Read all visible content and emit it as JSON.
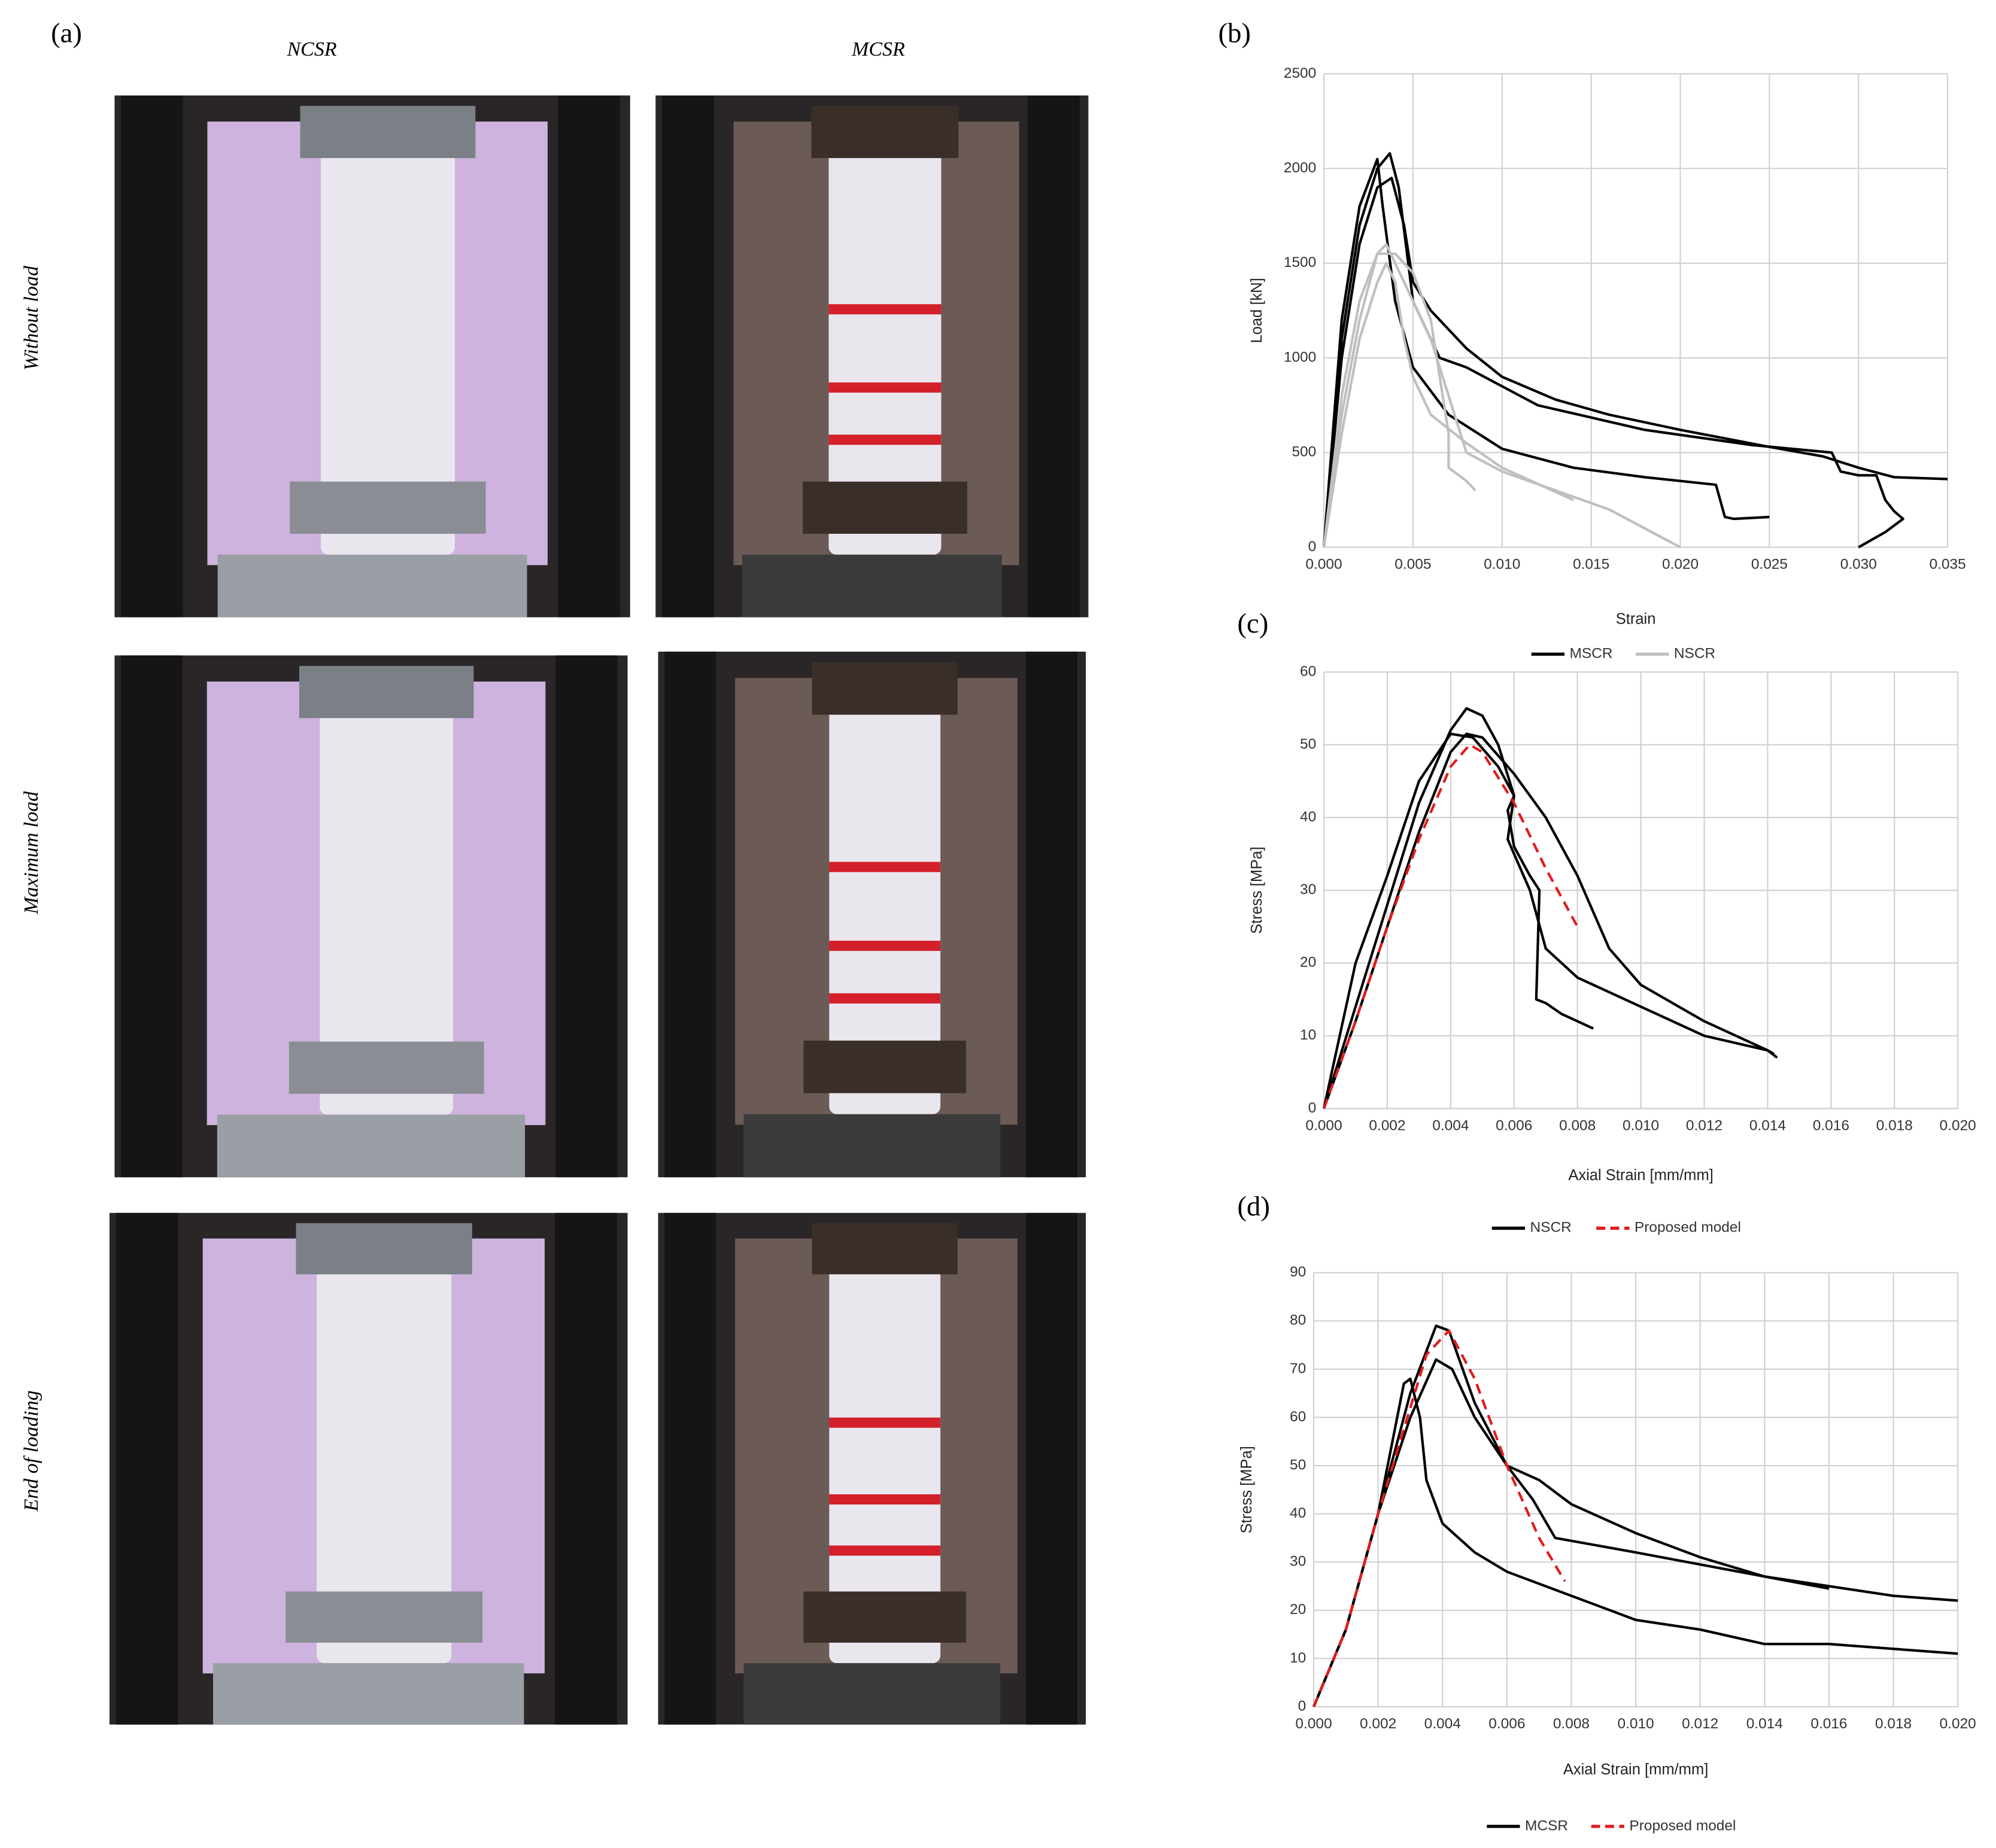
{
  "panel_labels": [
    "(a)",
    "(b)",
    "(c)",
    "(d)"
  ],
  "photos": {
    "columns": [
      "NCSR",
      "MCSR"
    ],
    "rows": [
      "Without load",
      "Maximum load",
      "End of loading"
    ]
  },
  "chart_data": [
    {
      "type": "line",
      "x_label": "Strain",
      "y_label": "Load [kN]",
      "grid": true,
      "legend": "bottom",
      "xlim": [
        0,
        0.035
      ],
      "ylim": [
        0,
        2500
      ],
      "xticks": [
        {
          "value": 0,
          "label": "0.000"
        },
        {
          "value": 0.005,
          "label": "0.005"
        },
        {
          "value": 0.01,
          "label": "0.010"
        },
        {
          "value": 0.015,
          "label": "0.015"
        },
        {
          "value": 0.02,
          "label": "0.020"
        },
        {
          "value": 0.025,
          "label": "0.025"
        },
        {
          "value": 0.03,
          "label": "0.030"
        },
        {
          "value": 0.035,
          "label": "0.035"
        }
      ],
      "yticks": [
        0,
        500,
        1000,
        1500,
        2000,
        2500
      ],
      "series": [
        {
          "name": "MSCR",
          "color": "#000000",
          "style": "solid",
          "curves": [
            {
              "x": [
                0,
                0.001,
                0.002,
                0.003,
                0.0038,
                0.0045,
                0.005,
                0.006,
                0.008,
                0.01,
                0.013,
                0.016,
                0.02,
                0.025,
                0.028,
                0.03,
                0.032,
                0.035
              ],
              "values": [
                0,
                1000,
                1600,
                1900,
                1950,
                1700,
                1400,
                1250,
                1050,
                900,
                780,
                700,
                620,
                530,
                480,
                420,
                370,
                360
              ]
            },
            {
              "x": [
                0,
                0.001,
                0.002,
                0.003,
                0.0037,
                0.0042,
                0.005,
                0.0065,
                0.008,
                0.012,
                0.018,
                0.024,
                0.0285,
                0.029,
                0.03,
                0.031,
                0.0315,
                0.032,
                0.0325,
                0.0315,
                0.03
              ],
              "values": [
                0,
                1100,
                1700,
                2000,
                2080,
                1900,
                1300,
                1000,
                950,
                750,
                620,
                540,
                500,
                400,
                380,
                380,
                250,
                190,
                150,
                80,
                0
              ]
            },
            {
              "x": [
                0,
                0.001,
                0.002,
                0.003,
                0.0033,
                0.004,
                0.005,
                0.007,
                0.01,
                0.014,
                0.018,
                0.022,
                0.0225,
                0.023,
                0.025
              ],
              "values": [
                0,
                1200,
                1800,
                2050,
                1800,
                1300,
                950,
                700,
                520,
                420,
                370,
                330,
                160,
                150,
                160
              ]
            }
          ]
        },
        {
          "name": "NSCR",
          "color": "#bfbfbf",
          "style": "solid",
          "curves": [
            {
              "x": [
                0,
                0.001,
                0.002,
                0.003,
                0.0035,
                0.004,
                0.005,
                0.006,
                0.007,
                0.008,
                0.01,
                0.013,
                0.016,
                0.02
              ],
              "values": [
                0,
                700,
                1200,
                1550,
                1600,
                1500,
                1300,
                1100,
                800,
                500,
                400,
                300,
                200,
                0
              ]
            },
            {
              "x": [
                0,
                0.001,
                0.002,
                0.003,
                0.0035,
                0.004,
                0.0045,
                0.005,
                0.006,
                0.008,
                0.01,
                0.014
              ],
              "values": [
                0,
                600,
                1100,
                1400,
                1500,
                1400,
                1100,
                900,
                700,
                550,
                420,
                250
              ]
            },
            {
              "x": [
                0,
                0.001,
                0.002,
                0.003,
                0.004,
                0.005,
                0.006,
                0.0065,
                0.007,
                0.007,
                0.008,
                0.0085
              ],
              "values": [
                0,
                800,
                1300,
                1550,
                1550,
                1450,
                1200,
                900,
                600,
                420,
                350,
                300
              ]
            }
          ]
        }
      ]
    },
    {
      "type": "line",
      "x_label": "Axial Strain [mm/mm]",
      "y_label": "Stress [MPa]",
      "grid": true,
      "legend": "bottom",
      "xlim": [
        0,
        0.02
      ],
      "ylim": [
        0,
        60
      ],
      "xticks": [
        {
          "value": 0,
          "label": "0.000"
        },
        {
          "value": 0.002,
          "label": "0.002"
        },
        {
          "value": 0.004,
          "label": "0.004"
        },
        {
          "value": 0.006,
          "label": "0.006"
        },
        {
          "value": 0.008,
          "label": "0.008"
        },
        {
          "value": 0.01,
          "label": "0.010"
        },
        {
          "value": 0.012,
          "label": "0.012"
        },
        {
          "value": 0.014,
          "label": "0.014"
        },
        {
          "value": 0.016,
          "label": "0.016"
        },
        {
          "value": 0.018,
          "label": "0.018"
        },
        {
          "value": 0.02,
          "label": "0.020"
        }
      ],
      "yticks": [
        0,
        10,
        20,
        30,
        40,
        50,
        60
      ],
      "series": [
        {
          "name": "NSCR",
          "color": "#000000",
          "style": "solid",
          "curves": [
            {
              "x": [
                0,
                0.001,
                0.002,
                0.003,
                0.004,
                0.0045,
                0.005,
                0.006,
                0.007,
                0.008,
                0.009,
                0.01,
                0.012,
                0.014,
                0.0143
              ],
              "values": [
                0,
                12,
                25,
                38,
                49,
                51.5,
                51,
                46,
                40,
                32,
                22,
                17,
                12,
                8,
                7
              ]
            },
            {
              "x": [
                0,
                0.001,
                0.002,
                0.003,
                0.004,
                0.0045,
                0.005,
                0.0055,
                0.006,
                0.0058,
                0.0065,
                0.007,
                0.008,
                0.01,
                0.012,
                0.014,
                0.0142
              ],
              "values": [
                0,
                14,
                28,
                42,
                52,
                55,
                54,
                50,
                43,
                37,
                30,
                22,
                18,
                14,
                10,
                8,
                7.5
              ]
            },
            {
              "x": [
                0,
                0.001,
                0.002,
                0.003,
                0.004,
                0.0047,
                0.0055,
                0.006,
                0.0058,
                0.006,
                0.0065,
                0.0068,
                0.0067,
                0.007,
                0.0075,
                0.0085
              ],
              "values": [
                0,
                20,
                32,
                45,
                51.5,
                51,
                47,
                43,
                41,
                36,
                32,
                30,
                15,
                14.5,
                13,
                11
              ]
            }
          ]
        },
        {
          "name": "Proposed model",
          "color": "#e31a1c",
          "style": "dashed",
          "curves": [
            {
              "x": [
                0,
                0.001,
                0.002,
                0.003,
                0.004,
                0.0046,
                0.005,
                0.006,
                0.007,
                0.008
              ],
              "values": [
                0,
                12,
                25,
                37,
                47,
                50,
                49,
                42,
                33,
                25
              ]
            }
          ]
        }
      ]
    },
    {
      "type": "line",
      "x_label": "Axial Strain [mm/mm]",
      "y_label": "Stress [MPa]",
      "grid": true,
      "legend": "bottom",
      "xlim": [
        0,
        0.02
      ],
      "ylim": [
        0,
        90
      ],
      "xticks": [
        {
          "value": 0,
          "label": "0.000"
        },
        {
          "value": 0.002,
          "label": "0.002"
        },
        {
          "value": 0.004,
          "label": "0.004"
        },
        {
          "value": 0.006,
          "label": "0.006"
        },
        {
          "value": 0.008,
          "label": "0.008"
        },
        {
          "value": 0.01,
          "label": "0.010"
        },
        {
          "value": 0.012,
          "label": "0.012"
        },
        {
          "value": 0.014,
          "label": "0.014"
        },
        {
          "value": 0.016,
          "label": "0.016"
        },
        {
          "value": 0.018,
          "label": "0.018"
        },
        {
          "value": 0.02,
          "label": "0.020"
        }
      ],
      "yticks": [
        0,
        10,
        20,
        30,
        40,
        50,
        60,
        70,
        80,
        90
      ],
      "series": [
        {
          "name": "MCSR",
          "color": "#000000",
          "style": "solid",
          "curves": [
            {
              "x": [
                0,
                0.001,
                0.002,
                0.003,
                0.0038,
                0.0042,
                0.005,
                0.006,
                0.007,
                0.008,
                0.01,
                0.012,
                0.014,
                0.016,
                0.018,
                0.02
              ],
              "values": [
                0,
                16,
                40,
                65,
                79,
                78,
                63,
                50,
                47,
                42,
                36,
                31,
                27,
                25,
                23,
                22
              ]
            },
            {
              "x": [
                0,
                0.001,
                0.002,
                0.003,
                0.0038,
                0.0043,
                0.005,
                0.006,
                0.0068,
                0.0075,
                0.01,
                0.014,
                0.016
              ],
              "values": [
                0,
                16,
                40,
                60,
                72,
                70,
                60,
                50,
                43,
                35,
                32,
                27,
                24.5
              ]
            },
            {
              "x": [
                0,
                0.001,
                0.002,
                0.0028,
                0.003,
                0.0033,
                0.0035,
                0.004,
                0.005,
                0.006,
                0.008,
                0.01,
                0.012,
                0.014,
                0.016,
                0.018,
                0.02
              ],
              "values": [
                0,
                16,
                40,
                67,
                68,
                60,
                47,
                38,
                32,
                28,
                23,
                18,
                16,
                13,
                13,
                12,
                11
              ]
            }
          ]
        },
        {
          "name": "Proposed model",
          "color": "#e31a1c",
          "style": "dashed",
          "curves": [
            {
              "x": [
                0,
                0.001,
                0.002,
                0.003,
                0.0035,
                0.0042,
                0.005,
                0.006,
                0.007,
                0.0078
              ],
              "values": [
                0,
                16,
                40,
                62,
                73,
                78,
                68,
                50,
                35,
                26
              ]
            }
          ]
        }
      ]
    }
  ]
}
